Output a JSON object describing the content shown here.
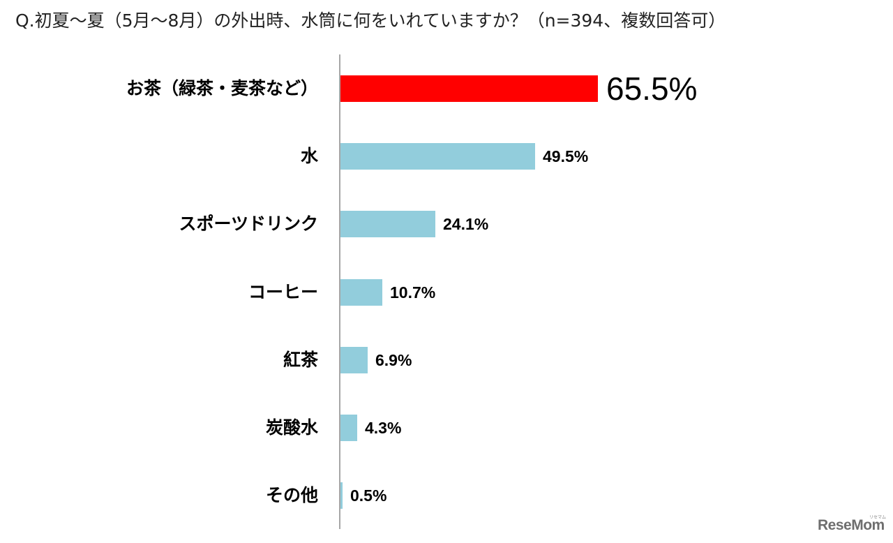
{
  "title": "Q.初夏～夏（5月～8月）の外出時、水筒に何をいれていますか？（n=394、複数回答可）",
  "logo": {
    "text": "ReseMom",
    "sub": "リセマム"
  },
  "colors": {
    "highlight": "#ff0000",
    "bar": "#92cddc",
    "axis": "#a6a6a6"
  },
  "rows": [
    {
      "label": "お茶（緑茶・麦茶など）",
      "value_label": "65.5%"
    },
    {
      "label": "水",
      "value_label": "49.5%"
    },
    {
      "label": "スポーツドリンク",
      "value_label": "24.1%"
    },
    {
      "label": "コーヒー",
      "value_label": "10.7%"
    },
    {
      "label": "紅茶",
      "value_label": "6.9%"
    },
    {
      "label": "炭酸水",
      "value_label": "4.3%"
    },
    {
      "label": "その他",
      "value_label": "0.5%"
    }
  ],
  "chart_data": {
    "type": "bar",
    "orientation": "horizontal",
    "title": "Q.初夏～夏（5月～8月）の外出時、水筒に何をいれていますか？（n=394、複数回答可）",
    "categories": [
      "お茶（緑茶・麦茶など）",
      "水",
      "スポーツドリンク",
      "コーヒー",
      "紅茶",
      "炭酸水",
      "その他"
    ],
    "values": [
      65.5,
      49.5,
      24.1,
      10.7,
      6.9,
      4.3,
      0.5
    ],
    "unit": "%",
    "highlighted_category": "お茶（緑茶・麦茶など）",
    "xlabel": "",
    "ylabel": "",
    "grid": false,
    "legend": "none",
    "data_labels": true
  }
}
